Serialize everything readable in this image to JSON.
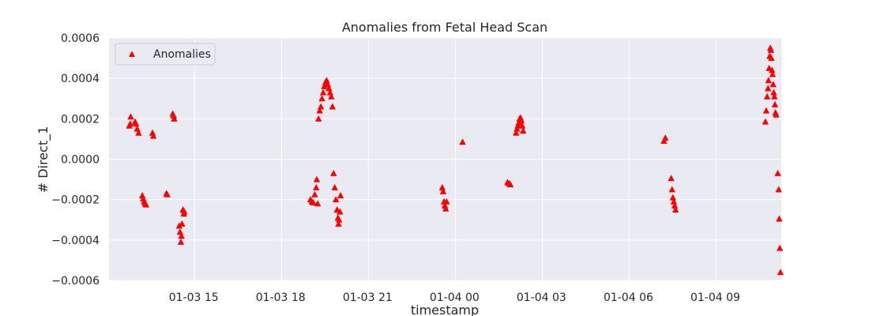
{
  "chart_data": {
    "type": "scatter",
    "title": "Anomalies from Fetal Head Scan",
    "xlabel": "timestamp",
    "ylabel": "# Direct_1",
    "x_tick_labels": [
      "01-03 15",
      "01-03 18",
      "01-03 21",
      "01-04 00",
      "01-04 03",
      "01-04 06",
      "01-04 09"
    ],
    "x_tick_hours": [
      15,
      18,
      21,
      24,
      27,
      30,
      33
    ],
    "xlim_hours": [
      12.05,
      35.25
    ],
    "ylim": [
      -0.0006,
      0.0006
    ],
    "y_ticks": [
      -0.0006,
      -0.0004,
      -0.0002,
      0.0,
      0.0002,
      0.0004,
      0.0006
    ],
    "y_tick_labels": [
      "−0.0006",
      "−0.0004",
      "−0.0002",
      "0.0000",
      "0.0002",
      "0.0004",
      "0.0006"
    ],
    "grid": true,
    "legend_position": "upper-left",
    "colors": {
      "marker": "#ff0000",
      "plot_bg": "#eaeaf2",
      "grid": "#ffffff"
    },
    "series": [
      {
        "name": "Anomalies",
        "marker": "triangle",
        "points": [
          [
            12.75,
            0.000165
          ],
          [
            12.78,
            0.000175
          ],
          [
            12.8,
            0.00021
          ],
          [
            12.95,
            0.000185
          ],
          [
            12.98,
            0.000175
          ],
          [
            13.02,
            0.00015
          ],
          [
            13.07,
            0.00013
          ],
          [
            13.2,
            -0.00018
          ],
          [
            13.23,
            -0.000195
          ],
          [
            13.26,
            -0.00021
          ],
          [
            13.3,
            -0.00022
          ],
          [
            13.33,
            -0.000225
          ],
          [
            13.55,
            0.00013
          ],
          [
            13.58,
            0.000115
          ],
          [
            14.03,
            -0.00017
          ],
          [
            14.06,
            -0.000175
          ],
          [
            14.25,
            0.000225
          ],
          [
            14.28,
            0.000215
          ],
          [
            14.3,
            0.0002
          ],
          [
            14.47,
            -0.00033
          ],
          [
            14.5,
            -0.00036
          ],
          [
            14.53,
            -0.00041
          ],
          [
            14.55,
            -0.00038
          ],
          [
            14.57,
            -0.00032
          ],
          [
            14.6,
            -0.00025
          ],
          [
            14.63,
            -0.00027
          ],
          [
            14.65,
            -0.00026
          ],
          [
            19.0,
            -0.0002
          ],
          [
            19.05,
            -0.00021
          ],
          [
            19.1,
            -0.000215
          ],
          [
            19.15,
            -0.000175
          ],
          [
            19.2,
            -0.00014
          ],
          [
            19.22,
            -0.0001
          ],
          [
            19.25,
            -0.00022
          ],
          [
            19.28,
            0.0002
          ],
          [
            19.32,
            0.00024
          ],
          [
            19.36,
            0.00026
          ],
          [
            19.4,
            0.0003
          ],
          [
            19.44,
            0.00033
          ],
          [
            19.48,
            0.00036
          ],
          [
            19.52,
            0.00038
          ],
          [
            19.56,
            0.00039
          ],
          [
            19.6,
            0.00037
          ],
          [
            19.64,
            0.00035
          ],
          [
            19.68,
            0.00033
          ],
          [
            19.72,
            0.00031
          ],
          [
            19.76,
            0.00026
          ],
          [
            19.8,
            -7e-05
          ],
          [
            19.84,
            -0.00014
          ],
          [
            19.88,
            -0.0002
          ],
          [
            19.92,
            -0.00025
          ],
          [
            19.95,
            -0.00029
          ],
          [
            19.97,
            -0.00032
          ],
          [
            19.99,
            -0.0003
          ],
          [
            20.02,
            -0.00026
          ],
          [
            20.04,
            -0.00018
          ],
          [
            23.55,
            -0.00014
          ],
          [
            23.58,
            -0.00016
          ],
          [
            23.61,
            -0.00021
          ],
          [
            23.64,
            -0.00023
          ],
          [
            23.67,
            -0.000245
          ],
          [
            23.7,
            -0.00021
          ],
          [
            24.25,
            8.5e-05
          ],
          [
            25.8,
            -0.000115
          ],
          [
            25.85,
            -0.00012
          ],
          [
            25.9,
            -0.000125
          ],
          [
            26.1,
            0.00013
          ],
          [
            26.13,
            0.00015
          ],
          [
            26.16,
            0.000165
          ],
          [
            26.19,
            0.00018
          ],
          [
            26.22,
            0.0002
          ],
          [
            26.25,
            0.000205
          ],
          [
            26.28,
            0.00019
          ],
          [
            26.31,
            0.000165
          ],
          [
            26.34,
            0.00014
          ],
          [
            31.2,
            9e-05
          ],
          [
            31.25,
            0.000105
          ],
          [
            31.45,
            -9.5e-05
          ],
          [
            31.48,
            -0.00015
          ],
          [
            31.51,
            -0.00019
          ],
          [
            31.54,
            -0.00021
          ],
          [
            31.57,
            -0.00023
          ],
          [
            31.6,
            -0.00025
          ],
          [
            34.7,
            0.000185
          ],
          [
            34.73,
            0.00024
          ],
          [
            34.76,
            0.00031
          ],
          [
            34.79,
            0.00035
          ],
          [
            34.81,
            0.00039
          ],
          [
            34.83,
            0.00045
          ],
          [
            34.85,
            0.00051
          ],
          [
            34.87,
            0.00055
          ],
          [
            34.89,
            0.00054
          ],
          [
            34.91,
            0.0005
          ],
          [
            34.93,
            0.00044
          ],
          [
            34.95,
            0.00042
          ],
          [
            34.97,
            0.00037
          ],
          [
            34.99,
            0.00033
          ],
          [
            35.01,
            0.00031
          ],
          [
            35.03,
            0.00027
          ],
          [
            35.05,
            0.00023
          ],
          [
            35.07,
            0.00022
          ],
          [
            35.13,
            -7e-05
          ],
          [
            35.16,
            -0.00015
          ],
          [
            35.18,
            -0.000295
          ],
          [
            35.2,
            -0.00044
          ],
          [
            35.22,
            -0.00056
          ]
        ]
      }
    ]
  }
}
